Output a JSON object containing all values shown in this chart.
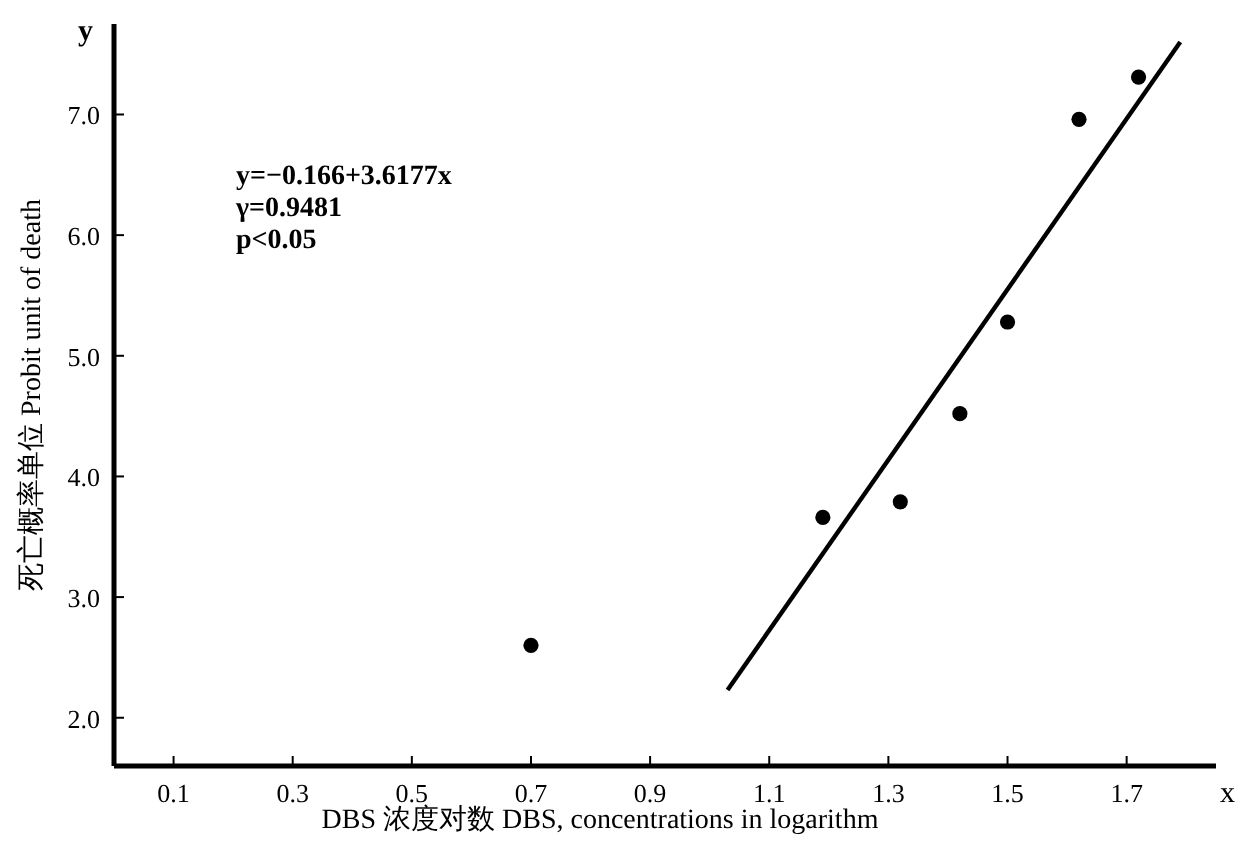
{
  "chart_data": {
    "type": "scatter",
    "xlabel": "DBS 浓度对数  DBS, concentrations in logarithm",
    "ylabel": "死亡概率单位 Probit unit of death",
    "annotations": [
      "y=−0.166+3.6177x",
      "γ=0.9481",
      "p<0.05",
      "y",
      "x"
    ],
    "xlim": [
      0,
      1.85
    ],
    "ylim": [
      1.6,
      7.75
    ],
    "xticks": [
      0.1,
      0.3,
      0.5,
      0.7,
      0.9,
      1.1,
      1.3,
      1.5,
      1.7
    ],
    "yticks": [
      {
        "value": 2,
        "label": "2.0"
      },
      {
        "value": 3,
        "label": "3.0"
      },
      {
        "value": 4,
        "label": "4.0"
      },
      {
        "value": 5,
        "label": "5.0"
      },
      {
        "value": 6,
        "label": "6.0"
      },
      {
        "value": 7,
        "label": "7.0"
      }
    ],
    "marker": "circle",
    "series": [
      {
        "color": "#000000",
        "x": [
          0.7,
          1.19,
          1.32,
          1.42,
          1.5,
          1.62,
          1.72
        ],
        "values": [
          2.6,
          3.66,
          3.79,
          4.52,
          5.28,
          6.96,
          7.31
        ]
      },
      {
        "type": "line",
        "marker": "none",
        "color": "#000000",
        "x": [
          1.03,
          1.79
        ],
        "values": [
          2.23,
          7.6
        ]
      }
    ]
  }
}
